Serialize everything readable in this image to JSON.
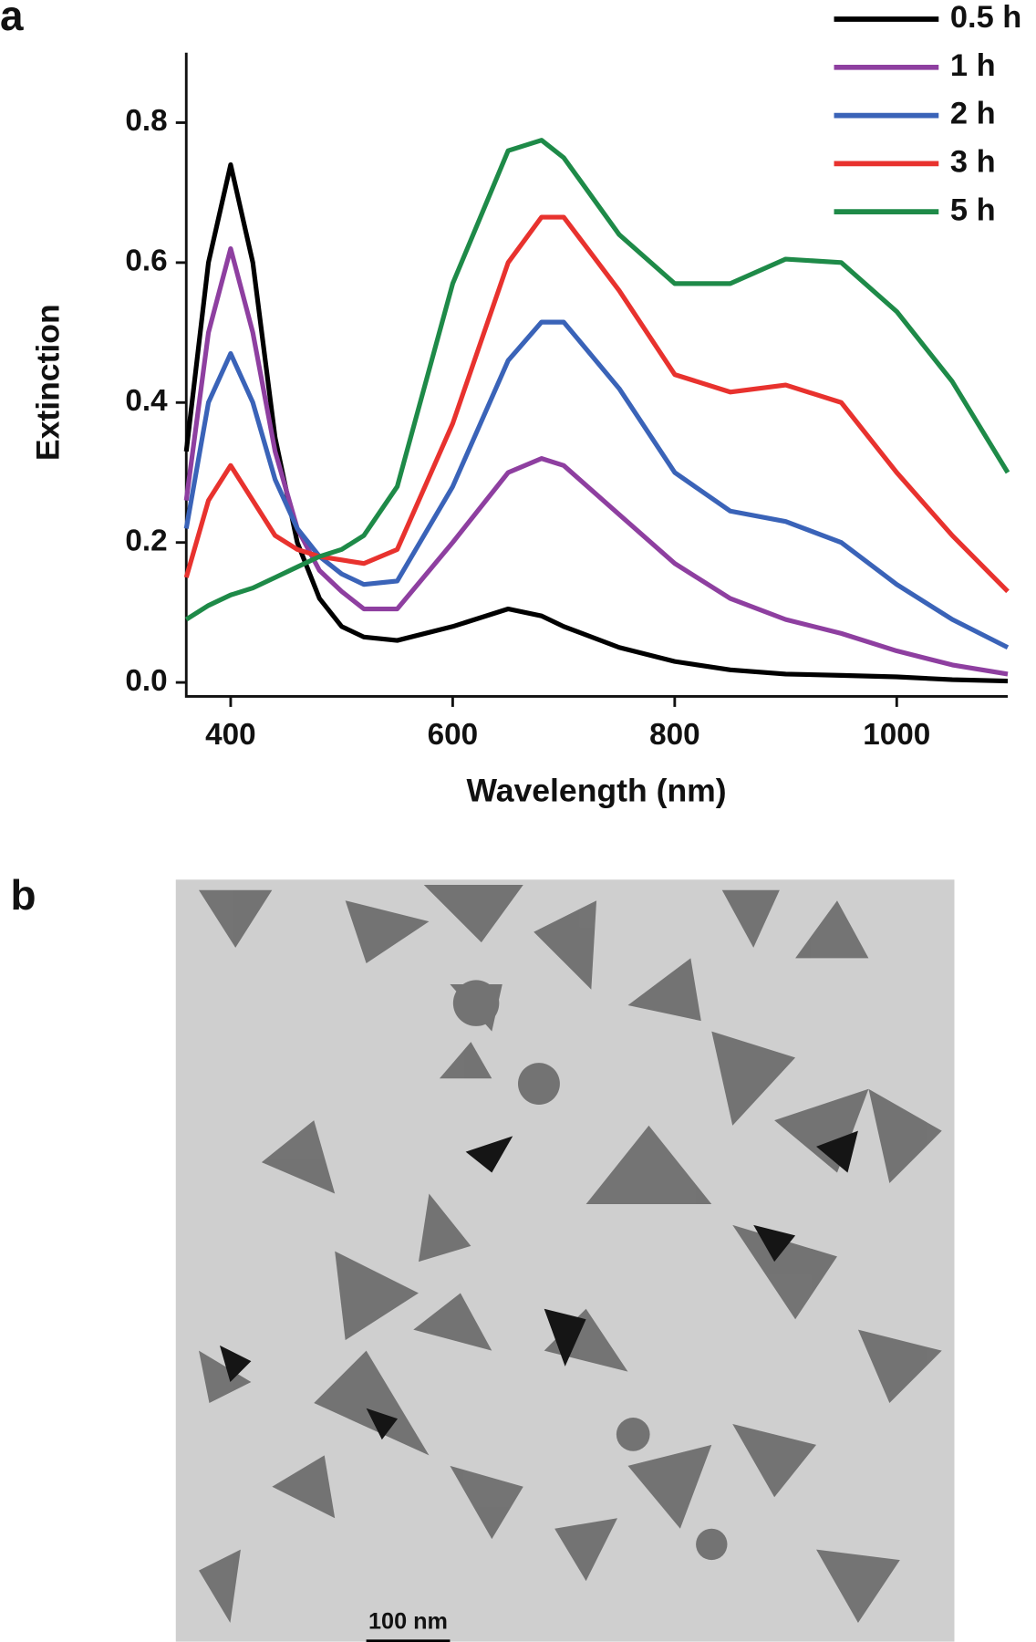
{
  "chart_data": {
    "type": "line",
    "x_label": "Wavelength (nm)",
    "y_label": "Extinction",
    "x": [
      360,
      380,
      400,
      420,
      440,
      460,
      480,
      500,
      520,
      550,
      600,
      650,
      680,
      700,
      750,
      800,
      850,
      900,
      950,
      1000,
      1050,
      1100
    ],
    "series": [
      {
        "name": "0.5 h",
        "color": "#000000",
        "values": [
          0.33,
          0.6,
          0.74,
          0.6,
          0.35,
          0.2,
          0.12,
          0.08,
          0.065,
          0.06,
          0.08,
          0.105,
          0.095,
          0.08,
          0.05,
          0.03,
          0.018,
          0.012,
          0.01,
          0.008,
          0.004,
          0.002
        ]
      },
      {
        "name": "1 h",
        "color": "#8e3fa0",
        "values": [
          0.26,
          0.5,
          0.62,
          0.5,
          0.33,
          0.22,
          0.16,
          0.13,
          0.105,
          0.105,
          0.2,
          0.3,
          0.32,
          0.31,
          0.24,
          0.17,
          0.12,
          0.09,
          0.07,
          0.045,
          0.025,
          0.012
        ]
      },
      {
        "name": "2 h",
        "color": "#3a63b8",
        "values": [
          0.22,
          0.4,
          0.47,
          0.4,
          0.29,
          0.22,
          0.18,
          0.155,
          0.14,
          0.145,
          0.28,
          0.46,
          0.515,
          0.515,
          0.42,
          0.3,
          0.245,
          0.23,
          0.2,
          0.14,
          0.09,
          0.05
        ]
      },
      {
        "name": "3 h",
        "color": "#e8322e",
        "values": [
          0.15,
          0.26,
          0.31,
          0.26,
          0.21,
          0.19,
          0.18,
          0.175,
          0.17,
          0.19,
          0.37,
          0.6,
          0.665,
          0.665,
          0.56,
          0.44,
          0.415,
          0.425,
          0.4,
          0.3,
          0.21,
          0.13
        ]
      },
      {
        "name": "5 h",
        "color": "#1e8a48",
        "values": [
          0.09,
          0.11,
          0.125,
          0.135,
          0.15,
          0.165,
          0.18,
          0.19,
          0.21,
          0.28,
          0.57,
          0.76,
          0.775,
          0.75,
          0.64,
          0.57,
          0.57,
          0.605,
          0.6,
          0.53,
          0.43,
          0.3
        ]
      }
    ],
    "xlim": [
      360,
      1100
    ],
    "xticks": [
      400,
      600,
      800,
      1000
    ],
    "ylim": [
      -0.02,
      0.9
    ],
    "yticks": [
      {
        "value": 0,
        "label": "0.0"
      },
      0.2,
      0.4,
      0.6,
      0.8
    ],
    "legend": "upper right",
    "grid": false
  },
  "panels": {
    "a": "a",
    "b": "b"
  },
  "scale_bar": "100 nm"
}
